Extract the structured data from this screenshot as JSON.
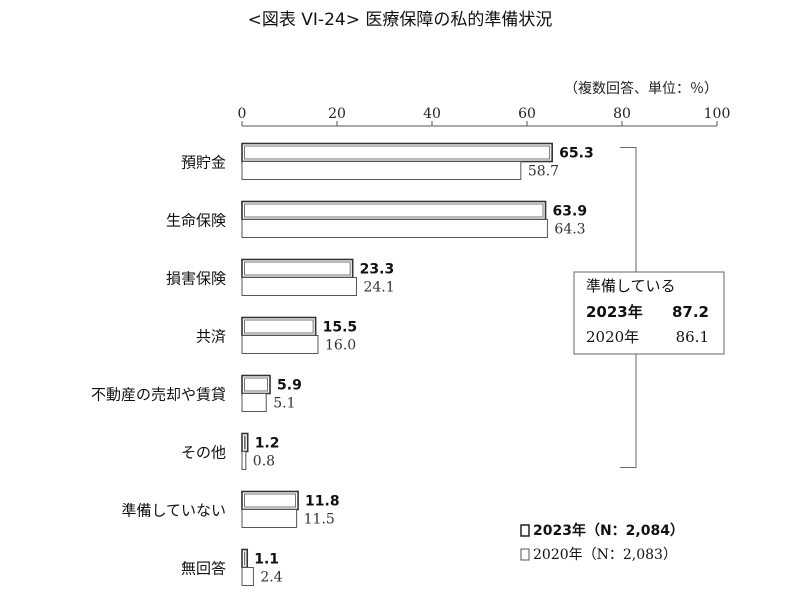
{
  "chart_data": {
    "type": "bar",
    "orientation": "horizontal",
    "title": "<図表 VI-24> 医療保障の私的準備状況",
    "unit_note": "（複数回答、単位：％）",
    "xlim": [
      0,
      100
    ],
    "xticks": [
      "0",
      "20",
      "40",
      "60",
      "80",
      "100"
    ],
    "categories": [
      "預貯金",
      "生命保険",
      "損害保険",
      "共済",
      "不動産の売却や賃貸",
      "その他",
      "準備していない",
      "無回答"
    ],
    "series": [
      {
        "name": "2023年（N：2,084）",
        "values": [
          65.3,
          63.9,
          23.3,
          15.5,
          5.9,
          1.2,
          11.8,
          1.1
        ],
        "labels": [
          "65.3",
          "63.9",
          "23.3",
          "15.5",
          "5.9",
          "1.2",
          "11.8",
          "1.1"
        ]
      },
      {
        "name": "2020年（N：2,083）",
        "values": [
          58.7,
          64.3,
          24.1,
          16.0,
          5.1,
          0.8,
          11.5,
          2.4
        ],
        "labels": [
          "58.7",
          "64.3",
          "24.1",
          "16.0",
          "5.1",
          "0.8",
          "11.5",
          "2.4"
        ]
      }
    ],
    "legend_position": "bottom-right",
    "annotation": {
      "heading": "準備している",
      "rows": [
        {
          "year": "2023年",
          "value": "87.2"
        },
        {
          "year": "2020年",
          "value": "86.1"
        }
      ]
    },
    "grid": false
  }
}
